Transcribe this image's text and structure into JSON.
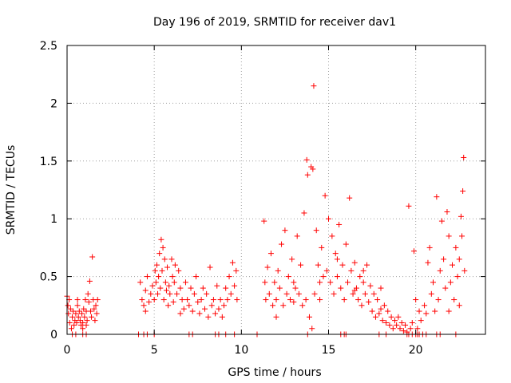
{
  "chart_data": {
    "type": "scatter",
    "title": "Day 196 of 2019, SRMTID for receiver dav1",
    "xlabel": "GPS time / hours",
    "ylabel": "SRMTID / TECUs",
    "xlim": [
      0,
      24
    ],
    "ylim": [
      0,
      2.5
    ],
    "xticks": [
      0,
      5,
      10,
      15,
      20
    ],
    "xtick_labels": [
      "0",
      "5",
      "10",
      "15",
      "20"
    ],
    "yticks": [
      0,
      0.5,
      1,
      1.5,
      2,
      2.5
    ],
    "ytick_labels": [
      "0",
      "0.5",
      "1",
      "1.5",
      "2",
      "2.5"
    ],
    "grid": true,
    "marker": "+",
    "color": "#ff0000",
    "series": [
      {
        "name": "SRMTID",
        "points": [
          [
            0.0,
            0.33
          ],
          [
            0.05,
            0.25
          ],
          [
            0.08,
            0.18
          ],
          [
            0.12,
            0.3
          ],
          [
            0.15,
            0.1
          ],
          [
            0.2,
            0.22
          ],
          [
            0.25,
            0.05
          ],
          [
            0.3,
            0.15
          ],
          [
            0.35,
            0.2
          ],
          [
            0.4,
            0.08
          ],
          [
            0.45,
            0.12
          ],
          [
            0.5,
            0.18
          ],
          [
            0.55,
            0.1
          ],
          [
            0.6,
            0.25
          ],
          [
            0.65,
            0.15
          ],
          [
            0.7,
            0.2
          ],
          [
            0.75,
            0.12
          ],
          [
            0.8,
            0.08
          ],
          [
            0.85,
            0.18
          ],
          [
            0.9,
            0.1
          ],
          [
            0.95,
            0.22
          ],
          [
            1.0,
            0.15
          ],
          [
            1.05,
            0.3
          ],
          [
            1.1,
            0.2
          ],
          [
            1.15,
            0.12
          ],
          [
            1.2,
            0.35
          ],
          [
            1.25,
            0.28
          ],
          [
            1.3,
            0.46
          ],
          [
            1.35,
            0.2
          ],
          [
            1.4,
            0.15
          ],
          [
            1.45,
            0.67
          ],
          [
            1.5,
            0.3
          ],
          [
            1.55,
            0.22
          ],
          [
            1.6,
            0.12
          ],
          [
            1.65,
            0.25
          ],
          [
            1.7,
            0.18
          ],
          [
            1.75,
            0.3
          ],
          [
            0.6,
            0.3
          ],
          [
            0.9,
            0.05
          ],
          [
            1.1,
            0.08
          ],
          [
            4.2,
            0.45
          ],
          [
            4.3,
            0.3
          ],
          [
            4.4,
            0.25
          ],
          [
            4.5,
            0.38
          ],
          [
            4.6,
            0.5
          ],
          [
            4.7,
            0.28
          ],
          [
            4.8,
            0.35
          ],
          [
            4.9,
            0.42
          ],
          [
            5.0,
            0.3
          ],
          [
            5.05,
            0.55
          ],
          [
            5.1,
            0.45
          ],
          [
            5.15,
            0.6
          ],
          [
            5.2,
            0.35
          ],
          [
            5.25,
            0.5
          ],
          [
            5.3,
            0.7
          ],
          [
            5.35,
            0.4
          ],
          [
            5.4,
            0.82
          ],
          [
            5.45,
            0.55
          ],
          [
            5.5,
            0.75
          ],
          [
            5.55,
            0.3
          ],
          [
            5.6,
            0.65
          ],
          [
            5.65,
            0.45
          ],
          [
            5.7,
            0.38
          ],
          [
            5.75,
            0.58
          ],
          [
            5.8,
            0.25
          ],
          [
            5.85,
            0.42
          ],
          [
            5.9,
            0.35
          ],
          [
            6.0,
            0.65
          ],
          [
            6.05,
            0.5
          ],
          [
            6.1,
            0.28
          ],
          [
            6.15,
            0.45
          ],
          [
            6.2,
            0.6
          ],
          [
            6.3,
            0.35
          ],
          [
            6.4,
            0.55
          ],
          [
            6.5,
            0.4
          ],
          [
            6.6,
            0.3
          ],
          [
            6.7,
            0.22
          ],
          [
            6.8,
            0.45
          ],
          [
            6.9,
            0.3
          ],
          [
            7.0,
            0.25
          ],
          [
            7.1,
            0.4
          ],
          [
            7.2,
            0.2
          ],
          [
            7.3,
            0.35
          ],
          [
            7.4,
            0.5
          ],
          [
            7.5,
            0.28
          ],
          [
            7.6,
            0.18
          ],
          [
            7.7,
            0.3
          ],
          [
            7.8,
            0.4
          ],
          [
            7.9,
            0.22
          ],
          [
            8.0,
            0.35
          ],
          [
            8.1,
            0.15
          ],
          [
            8.2,
            0.58
          ],
          [
            8.3,
            0.25
          ],
          [
            8.4,
            0.3
          ],
          [
            8.5,
            0.18
          ],
          [
            8.6,
            0.42
          ],
          [
            8.7,
            0.22
          ],
          [
            8.8,
            0.3
          ],
          [
            8.9,
            0.15
          ],
          [
            9.0,
            0.25
          ],
          [
            9.1,
            0.4
          ],
          [
            9.2,
            0.3
          ],
          [
            9.3,
            0.5
          ],
          [
            9.4,
            0.35
          ],
          [
            9.5,
            0.62
          ],
          [
            9.6,
            0.42
          ],
          [
            9.7,
            0.55
          ],
          [
            9.75,
            0.3
          ],
          [
            4.5,
            0.2
          ],
          [
            6.5,
            0.18
          ],
          [
            11.3,
            0.98
          ],
          [
            11.35,
            0.45
          ],
          [
            11.4,
            0.3
          ],
          [
            11.5,
            0.58
          ],
          [
            11.6,
            0.35
          ],
          [
            11.7,
            0.7
          ],
          [
            11.8,
            0.25
          ],
          [
            11.9,
            0.45
          ],
          [
            12.0,
            0.3
          ],
          [
            12.1,
            0.55
          ],
          [
            12.2,
            0.4
          ],
          [
            12.3,
            0.78
          ],
          [
            12.4,
            0.25
          ],
          [
            12.5,
            0.9
          ],
          [
            12.6,
            0.35
          ],
          [
            12.7,
            0.5
          ],
          [
            12.8,
            0.3
          ],
          [
            12.9,
            0.65
          ],
          [
            13.0,
            0.28
          ],
          [
            13.1,
            0.4
          ],
          [
            13.2,
            0.85
          ],
          [
            13.3,
            0.35
          ],
          [
            13.4,
            0.6
          ],
          [
            13.5,
            0.25
          ],
          [
            13.6,
            1.05
          ],
          [
            13.7,
            0.3
          ],
          [
            13.75,
            1.51
          ],
          [
            13.8,
            1.38
          ],
          [
            13.9,
            0.15
          ],
          [
            14.0,
            1.45
          ],
          [
            14.05,
            0.05
          ],
          [
            14.1,
            1.43
          ],
          [
            14.15,
            2.15
          ],
          [
            14.2,
            0.35
          ],
          [
            14.3,
            0.9
          ],
          [
            14.4,
            0.6
          ],
          [
            14.5,
            0.45
          ],
          [
            14.6,
            0.75
          ],
          [
            14.7,
            0.5
          ],
          [
            14.8,
            1.2
          ],
          [
            14.9,
            0.55
          ],
          [
            15.0,
            1.0
          ],
          [
            15.1,
            0.45
          ],
          [
            15.2,
            0.85
          ],
          [
            15.3,
            0.35
          ],
          [
            15.4,
            0.7
          ],
          [
            15.5,
            0.5
          ],
          [
            15.6,
            0.95
          ],
          [
            15.7,
            0.4
          ],
          [
            15.8,
            0.6
          ],
          [
            15.9,
            0.3
          ],
          [
            16.0,
            0.78
          ],
          [
            16.1,
            0.45
          ],
          [
            16.2,
            1.18
          ],
          [
            16.3,
            0.55
          ],
          [
            16.4,
            0.35
          ],
          [
            16.5,
            0.62
          ],
          [
            16.6,
            0.4
          ],
          [
            16.7,
            0.3
          ],
          [
            16.8,
            0.5
          ],
          [
            16.9,
            0.25
          ],
          [
            17.0,
            0.45
          ],
          [
            17.1,
            0.35
          ],
          [
            17.2,
            0.6
          ],
          [
            17.3,
            0.28
          ],
          [
            17.4,
            0.42
          ],
          [
            17.5,
            0.2
          ],
          [
            17.6,
            0.35
          ],
          [
            17.7,
            0.15
          ],
          [
            17.8,
            0.3
          ],
          [
            17.9,
            0.18
          ],
          [
            18.0,
            0.4
          ],
          [
            18.1,
            0.12
          ],
          [
            18.2,
            0.25
          ],
          [
            18.3,
            0.1
          ],
          [
            18.4,
            0.2
          ],
          [
            18.5,
            0.08
          ],
          [
            18.6,
            0.15
          ],
          [
            18.7,
            0.05
          ],
          [
            18.8,
            0.12
          ],
          [
            18.9,
            0.08
          ],
          [
            19.0,
            0.15
          ],
          [
            19.1,
            0.05
          ],
          [
            19.2,
            0.1
          ],
          [
            19.3,
            0.03
          ],
          [
            19.4,
            0.08
          ],
          [
            19.5,
            0.02
          ],
          [
            19.6,
            1.11
          ],
          [
            19.7,
            0.05
          ],
          [
            19.8,
            0.1
          ],
          [
            19.9,
            0.72
          ],
          [
            20.0,
            0.3
          ],
          [
            20.1,
            0.05
          ],
          [
            20.2,
            0.2
          ],
          [
            20.3,
            0.12
          ],
          [
            20.5,
            0.25
          ],
          [
            20.6,
            0.18
          ],
          [
            20.7,
            0.62
          ],
          [
            20.8,
            0.75
          ],
          [
            20.9,
            0.35
          ],
          [
            21.0,
            0.45
          ],
          [
            21.1,
            0.2
          ],
          [
            21.2,
            1.19
          ],
          [
            21.3,
            0.3
          ],
          [
            21.4,
            0.55
          ],
          [
            21.5,
            0.98
          ],
          [
            21.6,
            0.65
          ],
          [
            21.7,
            0.4
          ],
          [
            21.8,
            1.06
          ],
          [
            21.9,
            0.85
          ],
          [
            22.0,
            0.45
          ],
          [
            22.1,
            0.6
          ],
          [
            22.2,
            0.3
          ],
          [
            22.3,
            0.75
          ],
          [
            22.4,
            0.5
          ],
          [
            22.5,
            0.65
          ],
          [
            22.6,
            1.02
          ],
          [
            22.65,
            0.85
          ],
          [
            22.7,
            1.24
          ],
          [
            22.75,
            1.53
          ],
          [
            22.8,
            0.55
          ],
          [
            22.5,
            0.25
          ],
          [
            21.9,
            0.2
          ],
          [
            12.0,
            0.15
          ],
          [
            13.0,
            0.45
          ],
          [
            15.5,
            0.65
          ],
          [
            16.5,
            0.38
          ],
          [
            14.5,
            0.3
          ],
          [
            17.0,
            0.55
          ],
          [
            18.0,
            0.22
          ]
        ]
      }
    ],
    "zero_points_x": [
      0.3,
      0.5,
      0.9,
      1.1,
      4.1,
      4.4,
      4.6,
      5.0,
      7.0,
      7.2,
      8.5,
      8.7,
      9.1,
      9.6,
      10.9,
      13.8,
      15.7,
      15.9,
      16.0,
      17.9,
      18.3,
      19.5,
      19.6,
      19.8,
      20.0,
      20.1,
      20.2,
      20.4,
      20.6,
      21.2,
      21.4,
      22.3
    ]
  }
}
